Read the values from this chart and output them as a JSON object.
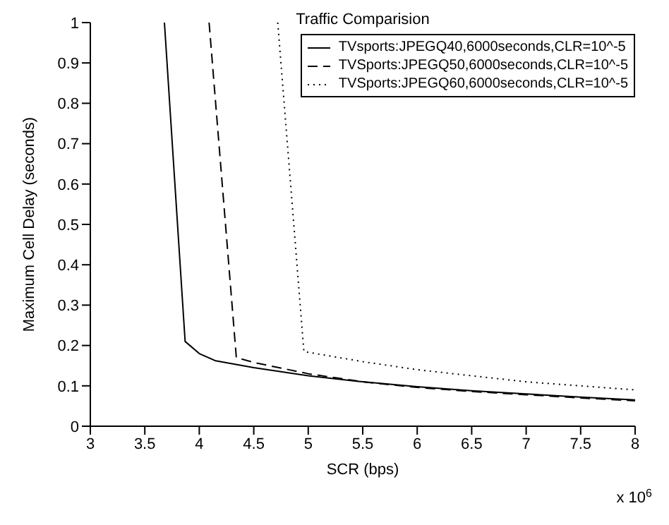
{
  "chart_data": {
    "type": "line",
    "title": "Traffic Comparision",
    "xlabel": "SCR (bps)",
    "ylabel": "Maximum Cell Delay (seconds)",
    "annotations": [
      "x 10$^{6}$"
    ],
    "series": [
      {
        "name": "TVsports:JPEGQ40,6000seconds,CLR=10^-5",
        "color": "#000000",
        "line_style": "solid",
        "x": [
          3.68,
          3.87,
          4.0,
          4.15,
          4.5,
          5.0,
          5.5,
          6.0,
          6.5,
          7.0,
          7.5,
          8.0
        ],
        "values": [
          1.0,
          0.21,
          0.18,
          0.162,
          0.145,
          0.125,
          0.11,
          0.098,
          0.088,
          0.08,
          0.072,
          0.065
        ]
      },
      {
        "name": "TVSports:JPEGQ50,6000seconds,CLR=10^-5",
        "color": "#000000",
        "line_style": "dashed",
        "x": [
          4.09,
          4.34,
          4.5,
          5.0,
          5.5,
          6.0,
          6.5,
          7.0,
          7.5,
          8.0
        ],
        "values": [
          1.0,
          0.17,
          0.158,
          0.13,
          0.11,
          0.096,
          0.086,
          0.078,
          0.07,
          0.063
        ]
      },
      {
        "name": "TVSports:JPEGQ60,6000seconds,CLR=10^-5",
        "color": "#000000",
        "line_style": "dotted",
        "x": [
          4.72,
          4.96,
          5.5,
          6.0,
          6.5,
          7.0,
          7.5,
          8.0
        ],
        "values": [
          1.0,
          0.185,
          0.16,
          0.14,
          0.125,
          0.11,
          0.1,
          0.09
        ]
      }
    ],
    "xlim": [
      3,
      8
    ],
    "xticks": [
      3,
      3.5,
      4,
      4.5,
      5,
      5.5,
      6,
      6.5,
      7,
      7.5,
      8
    ],
    "ylim": [
      0,
      1
    ],
    "yticks": [
      0,
      0.1,
      0.2,
      0.3,
      0.4,
      0.5,
      0.6,
      0.7,
      0.8,
      0.9,
      1
    ],
    "grid": false,
    "legend": "top right",
    "marker": "none"
  }
}
